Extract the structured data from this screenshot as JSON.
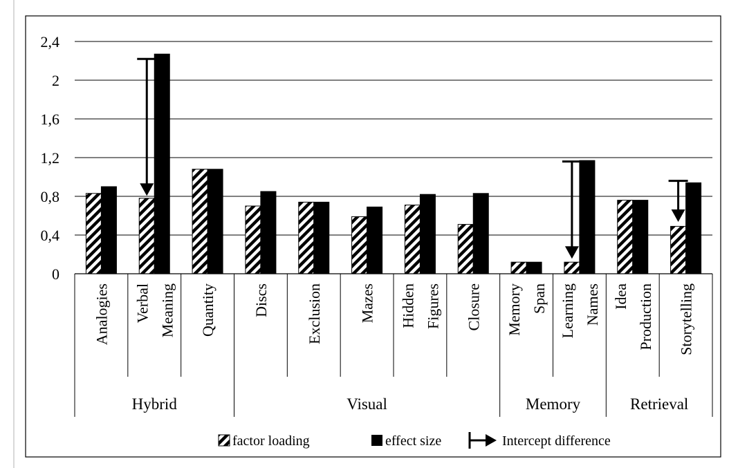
{
  "chart_data": {
    "type": "bar",
    "title": "",
    "xlabel": "",
    "ylabel": "",
    "ylim": [
      0,
      2.4
    ],
    "yticks": [
      "0",
      "0,4",
      "0,8",
      "1,2",
      "1,6",
      "2",
      "2,4"
    ],
    "ytick_values": [
      0,
      0.4,
      0.8,
      1.2,
      1.6,
      2.0,
      2.4
    ],
    "grid": true,
    "categories": [
      {
        "lines": [
          "Analogies"
        ]
      },
      {
        "lines": [
          "Verbal",
          "Meaning"
        ]
      },
      {
        "lines": [
          "Quantity"
        ]
      },
      {
        "lines": [
          "Discs"
        ]
      },
      {
        "lines": [
          "Exclusion"
        ]
      },
      {
        "lines": [
          "Mazes"
        ]
      },
      {
        "lines": [
          "Hidden",
          "Figures"
        ]
      },
      {
        "lines": [
          "Closure"
        ]
      },
      {
        "lines": [
          "Memory",
          "Span"
        ]
      },
      {
        "lines": [
          "Learning",
          "Names"
        ]
      },
      {
        "lines": [
          "Idea",
          "Production"
        ]
      },
      {
        "lines": [
          "Storytelling"
        ]
      }
    ],
    "groups": [
      {
        "name": "Hybrid",
        "start": 0,
        "end": 2
      },
      {
        "name": "Visual",
        "start": 3,
        "end": 7
      },
      {
        "name": "Memory",
        "start": 8,
        "end": 9
      },
      {
        "name": "Retrieval",
        "start": 10,
        "end": 11
      }
    ],
    "series": [
      {
        "name": "factor loading",
        "pattern": "hatched",
        "values": [
          0.83,
          0.78,
          1.08,
          0.7,
          0.74,
          0.59,
          0.71,
          0.51,
          0.12,
          0.12,
          0.76,
          0.49
        ]
      },
      {
        "name": "effect size",
        "pattern": "solid",
        "values": [
          0.9,
          2.27,
          1.08,
          0.85,
          0.74,
          0.69,
          0.82,
          0.83,
          0.12,
          1.17,
          0.76,
          0.94
        ]
      }
    ],
    "intercept_differences": [
      {
        "category_index": 1,
        "from": 2.22,
        "to": 0.82
      },
      {
        "category_index": 9,
        "from": 1.16,
        "to": 0.17
      },
      {
        "category_index": 11,
        "from": 0.96,
        "to": 0.55
      }
    ],
    "legend": {
      "position": "bottom",
      "items": [
        {
          "label": "factor loading",
          "kind": "hatched"
        },
        {
          "label": "effect size",
          "kind": "solid"
        },
        {
          "label": "Intercept difference",
          "kind": "arrow"
        }
      ]
    }
  }
}
